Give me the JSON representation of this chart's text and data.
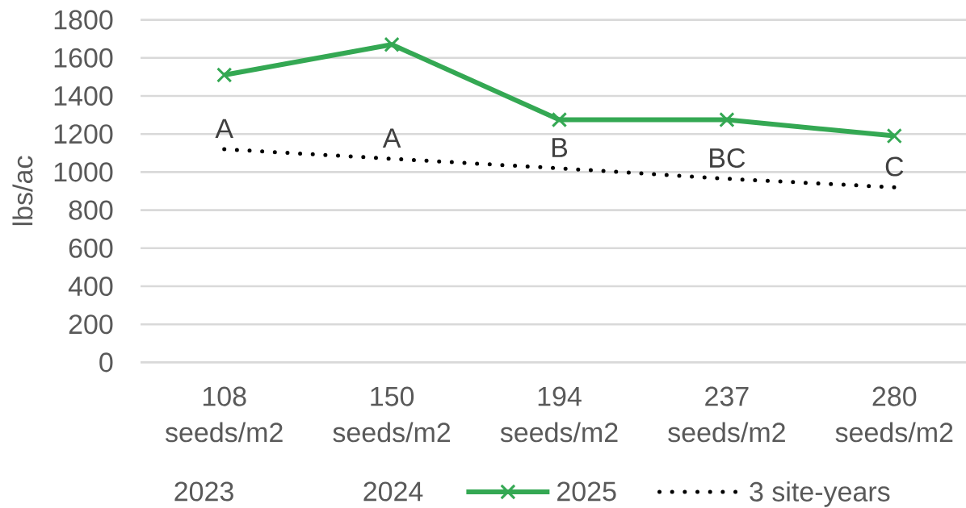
{
  "chart_data": {
    "type": "line",
    "ylabel": "lbs/ac",
    "categories": [
      "108 seeds/m2",
      "150 seeds/m2",
      "194 seeds/m2",
      "237 seeds/m2",
      "280 seeds/m2"
    ],
    "series": [
      {
        "name": "2023",
        "values": [
          null,
          null,
          null,
          null,
          null
        ]
      },
      {
        "name": "2024",
        "values": [
          null,
          null,
          null,
          null,
          null
        ]
      },
      {
        "name": "2025",
        "color": "#34a853",
        "marker": "cross",
        "line_style": "solid",
        "values": [
          1510,
          1670,
          1275,
          1275,
          1190
        ]
      },
      {
        "name": "3 site-years",
        "color": "#000000",
        "marker": "none",
        "line_style": "dotted",
        "values": [
          1120,
          1070,
          1020,
          965,
          920
        ],
        "value_labels": [
          "A",
          "A",
          "B",
          "BC",
          "C"
        ]
      }
    ],
    "ylim": [
      0,
      1800
    ],
    "yticks": [
      0,
      200,
      400,
      600,
      800,
      1000,
      1200,
      1400,
      1600,
      1800
    ],
    "grid": "y",
    "legend": "bottom"
  }
}
